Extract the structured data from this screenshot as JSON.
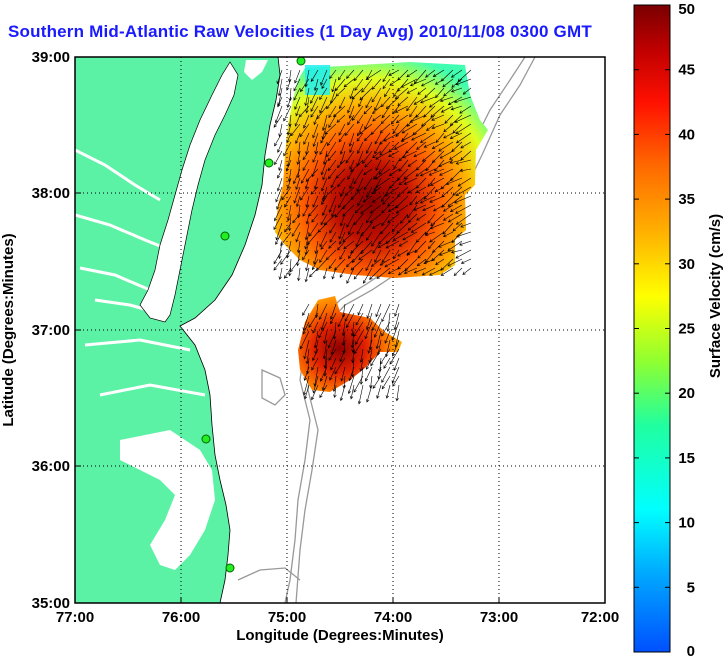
{
  "title": "Southern Mid-Atlantic Raw Velocities (1 Day Avg) 2010/11/08 0300 GMT",
  "xlabel": "Longitude (Degrees:Minutes)",
  "ylabel": "Latitude (Degrees:Minutes)",
  "xticks": [
    "77:00",
    "76:00",
    "75:00",
    "74:00",
    "73:00",
    "72:00"
  ],
  "yticks": [
    "39:00",
    "38:00",
    "37:00",
    "36:00",
    "35:00"
  ],
  "colorbar": {
    "label": "Surface Velocity (cm/s)",
    "ticks": [
      "0",
      "5",
      "10",
      "15",
      "20",
      "25",
      "30",
      "35",
      "40",
      "45",
      "50"
    ],
    "min": 0,
    "max": 50
  },
  "map": {
    "lon_range": [
      -77,
      -72
    ],
    "lat_range": [
      35,
      39
    ],
    "land_color": "#5cf2a6",
    "grid": true
  }
}
